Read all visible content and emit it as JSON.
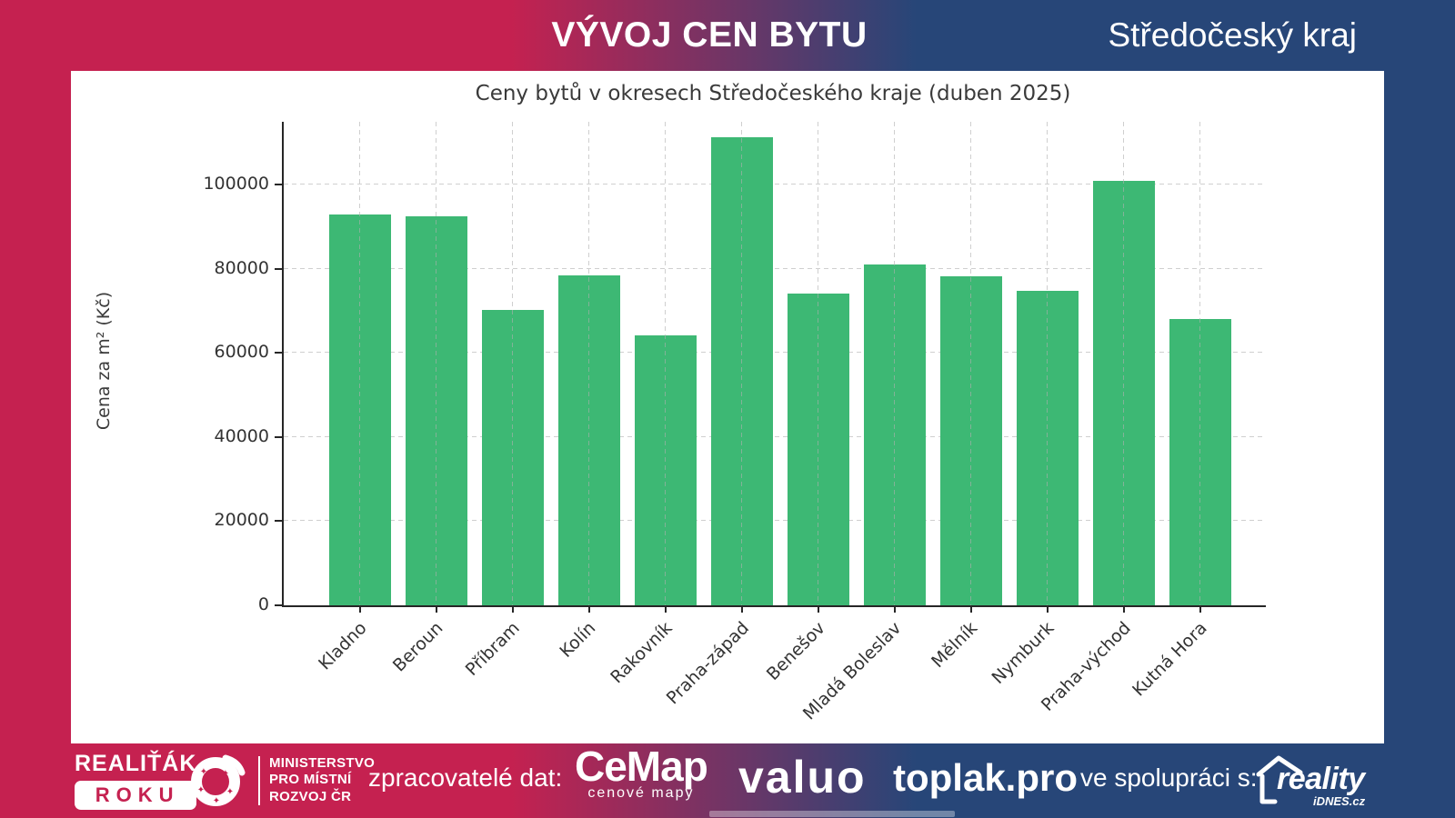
{
  "header": {
    "title": "VÝVOJ CEN BYTU",
    "region": "Středočeský kraj"
  },
  "chart_data": {
    "type": "bar",
    "title": "Ceny bytů v okresech Středočeského kraje (duben 2025)",
    "ylabel": "Cena za m² (Kč)",
    "xlabel": "",
    "categories": [
      "Kladno",
      "Beroun",
      "Příbram",
      "Kolín",
      "Rakovník",
      "Praha-západ",
      "Benešov",
      "Mladá Boleslav",
      "Mělník",
      "Nymburk",
      "Praha-východ",
      "Kutná Hora"
    ],
    "values": [
      93000,
      92500,
      70300,
      78500,
      64300,
      111400,
      74100,
      81000,
      78200,
      74800,
      100900,
      68000
    ],
    "ylim": [
      0,
      115000
    ],
    "yticks": [
      0,
      20000,
      40000,
      60000,
      80000,
      100000
    ],
    "grid": "dashed, horizontal and vertical",
    "legend": "none",
    "bar_color": "#3db874"
  },
  "footer": {
    "award_line1": "REALIŤÁK",
    "award_line2": "ROKU",
    "ministry_lines": "MINISTERSTVO\nPRO MÍSTNÍ\nROZVOJ ČR",
    "providers_label": "zpracovatelé dat:",
    "cemap_name": "CeMap",
    "cemap_sub": "cenové mapy",
    "valuo_name": "valuo",
    "toplak_name": "toplak.pro",
    "cooperation_label": "ve spolupráci s:",
    "partner_name": "reality",
    "partner_sub": "iDNES.cz"
  },
  "colors": {
    "crimson": "#c52150",
    "dark_blue": "#274678",
    "bar_green": "#3db874",
    "grid_gray": "#cfcfcf"
  }
}
